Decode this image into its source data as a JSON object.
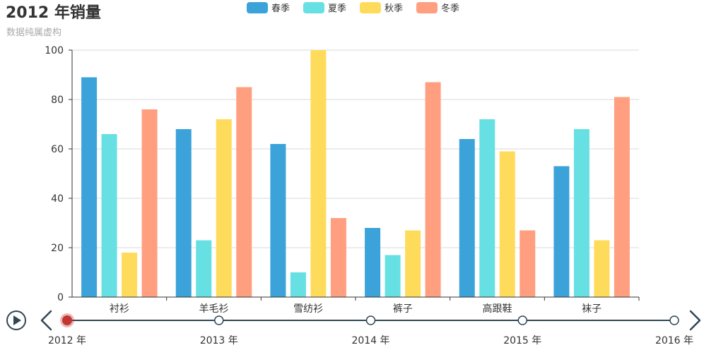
{
  "chart_data": {
    "type": "bar",
    "title": "2012 年销量",
    "subtitle": "数据纯属虚构",
    "categories": [
      "衬衫",
      "羊毛衫",
      "雪纺衫",
      "裤子",
      "高跟鞋",
      "袜子"
    ],
    "series": [
      {
        "name": "春季",
        "color": "#3ba3d9",
        "values": [
          89,
          68,
          62,
          28,
          64,
          53
        ]
      },
      {
        "name": "夏季",
        "color": "#67e0e3",
        "values": [
          66,
          23,
          10,
          17,
          72,
          68
        ]
      },
      {
        "name": "秋季",
        "color": "#ffdb5c",
        "values": [
          18,
          72,
          100,
          27,
          59,
          23
        ]
      },
      {
        "name": "冬季",
        "color": "#ff9f7f",
        "values": [
          76,
          85,
          32,
          87,
          27,
          81
        ]
      }
    ],
    "y_ticks": [
      0,
      20,
      40,
      60,
      80,
      100
    ],
    "ylim": [
      0,
      100
    ],
    "grid": true,
    "legend_position": "top-center"
  },
  "timeline": {
    "labels": [
      "2012 年",
      "2013 年",
      "2014 年",
      "2015 年",
      "2016 年"
    ],
    "current_index": 0,
    "line_color": "#304654",
    "active_color": "#c23531"
  }
}
